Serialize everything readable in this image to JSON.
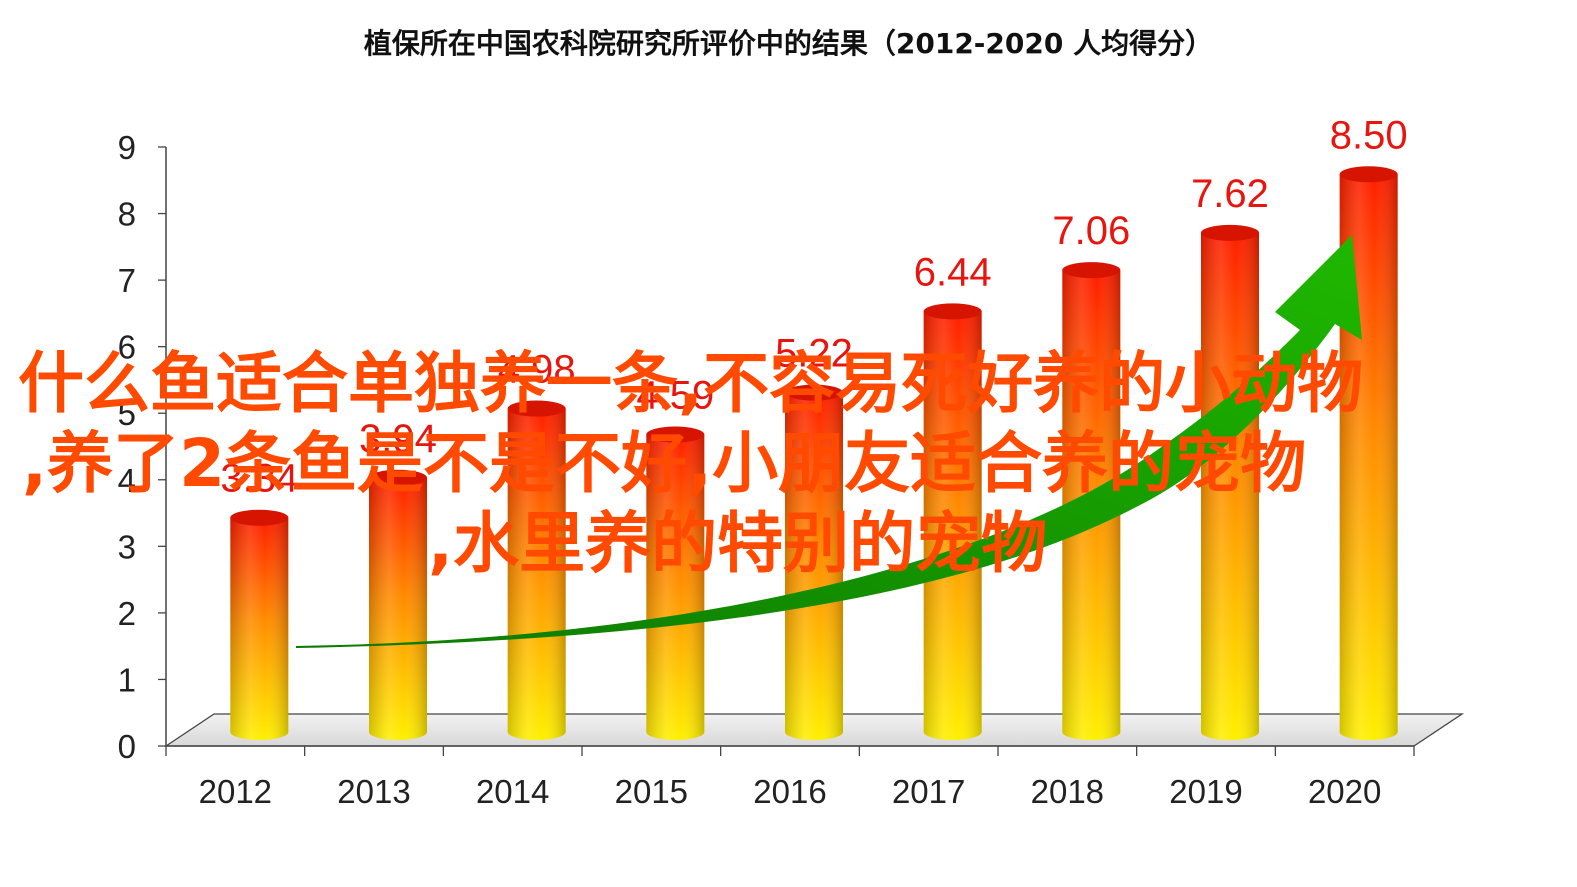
{
  "chart_data": {
    "type": "bar",
    "title": "植保所在中国农科院研究所评价中的结果（2012-2020  人均得分）",
    "categories": [
      "2012",
      "2013",
      "2014",
      "2015",
      "2016",
      "2017",
      "2018",
      "2019",
      "2020"
    ],
    "values": [
      3.34,
      3.94,
      4.98,
      4.59,
      5.22,
      6.44,
      7.06,
      7.62,
      8.5
    ],
    "value_labels": [
      "3.34",
      "3.94",
      "4.98",
      "4.59",
      "5.22",
      "6.44",
      "7.06",
      "7.62",
      "8.50"
    ],
    "ylim": [
      0,
      9
    ],
    "y_ticks": [
      "0",
      "1",
      "2",
      "3",
      "4",
      "5",
      "6",
      "7",
      "8",
      "9"
    ],
    "style": "3d-cylinder",
    "bar_gradient": [
      "#ff2a00",
      "#ffee00"
    ],
    "label_color": "#e8150f",
    "trend_arrow_color": "#119a00"
  },
  "overlay": {
    "color": "#ff4a00",
    "lines": [
      "什么鱼适合单独养一条,不容易死好养的小动物",
      ",养了2条鱼是不是不好,小朋友适合养的宠物",
      ",水里养的特别的宠物"
    ]
  }
}
